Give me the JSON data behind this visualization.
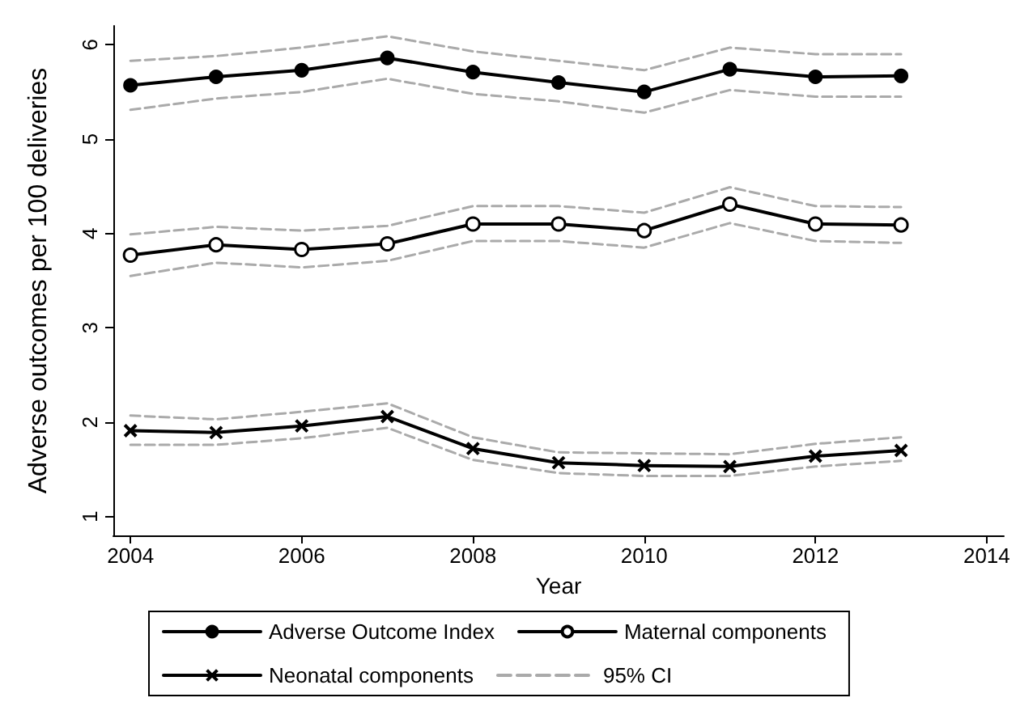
{
  "chart_data": {
    "type": "line",
    "xlabel": "Year",
    "ylabel": "Adverse outcomes per 100 deliveries",
    "x": [
      2004,
      2005,
      2006,
      2007,
      2008,
      2009,
      2010,
      2011,
      2012,
      2013
    ],
    "xlim": [
      2003.8,
      2014.2
    ],
    "xticks": [
      2004,
      2006,
      2008,
      2010,
      2012,
      2014
    ],
    "ylim": [
      0.8,
      6.2
    ],
    "yticks": [
      1,
      2,
      3,
      4,
      5,
      6
    ],
    "grid": false,
    "legend": "bottom",
    "series": [
      {
        "name": "Adverse Outcome Index",
        "color": "#000000",
        "marker": "circle",
        "line_style": "solid",
        "values": [
          5.57,
          5.66,
          5.73,
          5.86,
          5.71,
          5.6,
          5.5,
          5.74,
          5.66,
          5.67
        ]
      },
      {
        "name": "Maternal components",
        "color": "#000000",
        "marker": "circle",
        "line_style": "solid",
        "values": [
          3.77,
          3.88,
          3.83,
          3.89,
          4.1,
          4.1,
          4.03,
          4.31,
          4.1,
          4.09
        ]
      },
      {
        "name": "Neonatal components",
        "color": "#000000",
        "marker": "cross",
        "line_style": "solid",
        "values": [
          1.91,
          1.89,
          1.96,
          2.06,
          1.72,
          1.57,
          1.54,
          1.53,
          1.64,
          1.7
        ]
      },
      {
        "name": "95% CI",
        "color": "#aaaaaa",
        "marker": "none",
        "line_style": "dashed",
        "values": [
          5.83,
          5.88,
          5.97,
          6.09,
          5.93,
          5.83,
          5.73,
          5.97,
          5.9,
          5.9
        ]
      },
      {
        "color": "#aaaaaa",
        "marker": "none",
        "line_style": "dashed",
        "values": [
          5.31,
          5.43,
          5.5,
          5.64,
          5.48,
          5.4,
          5.28,
          5.52,
          5.45,
          5.45
        ]
      },
      {
        "color": "#aaaaaa",
        "marker": "none",
        "line_style": "dashed",
        "values": [
          3.99,
          4.07,
          4.03,
          4.08,
          4.29,
          4.29,
          4.22,
          4.49,
          4.29,
          4.28
        ]
      },
      {
        "color": "#aaaaaa",
        "marker": "none",
        "line_style": "dashed",
        "values": [
          3.55,
          3.69,
          3.64,
          3.71,
          3.92,
          3.92,
          3.85,
          4.11,
          3.92,
          3.9
        ]
      },
      {
        "color": "#aaaaaa",
        "marker": "none",
        "line_style": "dashed",
        "values": [
          2.07,
          2.03,
          2.11,
          2.2,
          1.84,
          1.68,
          1.67,
          1.66,
          1.77,
          1.84
        ]
      },
      {
        "color": "#aaaaaa",
        "marker": "none",
        "line_style": "dashed",
        "values": [
          1.76,
          1.76,
          1.83,
          1.94,
          1.6,
          1.46,
          1.43,
          1.43,
          1.53,
          1.59
        ]
      }
    ]
  }
}
